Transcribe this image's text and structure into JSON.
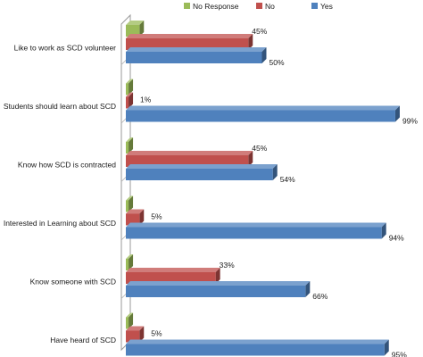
{
  "chart_data": {
    "type": "bar",
    "orientation": "horizontal",
    "categories": [
      "Like to work as SCD volunteer",
      "Students should learn about SCD",
      "Know how SCD is contracted",
      "Interested in Learning about SCD",
      "Know someone with SCD",
      "Have heard of SCD"
    ],
    "series": [
      {
        "name": "No Response",
        "color": "#9BBB59",
        "values": [
          5,
          1,
          1,
          1,
          1,
          1
        ],
        "labels": [
          "",
          "",
          "",
          "",
          "",
          ""
        ]
      },
      {
        "name": "No",
        "color": "#C0504D",
        "values": [
          45,
          1,
          45,
          5,
          33,
          5
        ],
        "labels": [
          "45%",
          "1%",
          "45%",
          "5%",
          "33%",
          "5%"
        ]
      },
      {
        "name": "Yes",
        "color": "#4F81BD",
        "values": [
          50,
          99,
          54,
          94,
          66,
          95
        ],
        "labels": [
          "50%",
          "99%",
          "54%",
          "94%",
          "66%",
          "95%"
        ]
      }
    ],
    "xlim": [
      0,
      100
    ],
    "legend_position": "top",
    "grid": false,
    "style": "3d"
  }
}
